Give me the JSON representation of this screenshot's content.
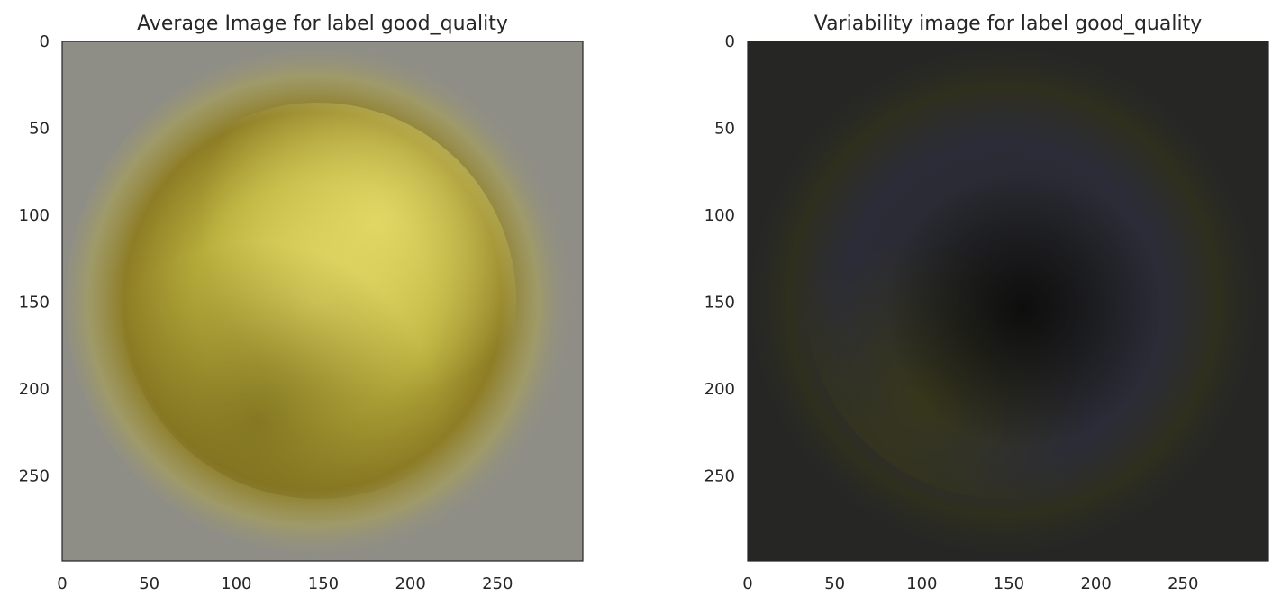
{
  "chart_data": [
    {
      "type": "heatmap",
      "title": "Average Image for label good_quality",
      "xticks": [
        0,
        50,
        100,
        150,
        200,
        250
      ],
      "yticks": [
        0,
        50,
        100,
        150,
        200,
        250
      ],
      "xlim": [
        0,
        299
      ],
      "ylim": [
        299,
        0
      ],
      "grid": false,
      "image": {
        "background": "#8f8e86",
        "blob_center": [
          150,
          150
        ],
        "blob_radius": 110,
        "colors": [
          "#ddd45e",
          "#b8ae3c",
          "#8e7d25",
          "#8f8e86"
        ]
      }
    },
    {
      "type": "heatmap",
      "title": "Variability image for label good_quality",
      "xticks": [
        0,
        50,
        100,
        150,
        200,
        250
      ],
      "yticks": [
        0,
        50,
        100,
        150,
        200,
        250
      ],
      "xlim": [
        0,
        299
      ],
      "ylim": [
        299,
        0
      ],
      "grid": false,
      "image": {
        "background": "#262725",
        "blob_center": [
          150,
          150
        ],
        "blob_radius": 110,
        "colors": [
          "#101010",
          "#2c2c30",
          "#2d2d15",
          "#262725"
        ]
      }
    }
  ]
}
